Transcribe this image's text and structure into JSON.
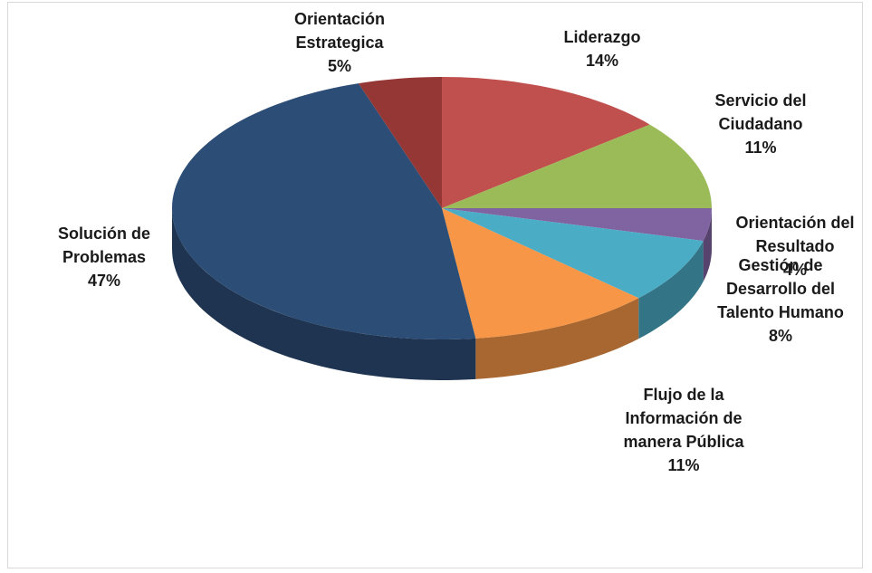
{
  "chart_data": {
    "type": "pie",
    "categories": [
      "Liderazgo",
      "Servicio del Ciudadano",
      "Orientación del Resultado",
      "Gestión de Desarrollo del Talento Humano",
      "Flujo de la Información de manera Pública",
      "Solución de Problemas",
      "Orientación Estrategica"
    ],
    "values": [
      14,
      11,
      4,
      8,
      11,
      47,
      5
    ],
    "value_labels": [
      "14%",
      "11%",
      "4%",
      "8%",
      "11%",
      "47%",
      "5%"
    ],
    "colors": [
      "#c0504d",
      "#9bbb59",
      "#8064a2",
      "#4bacc6",
      "#f79646",
      "#2c4d75",
      "#953735"
    ]
  }
}
